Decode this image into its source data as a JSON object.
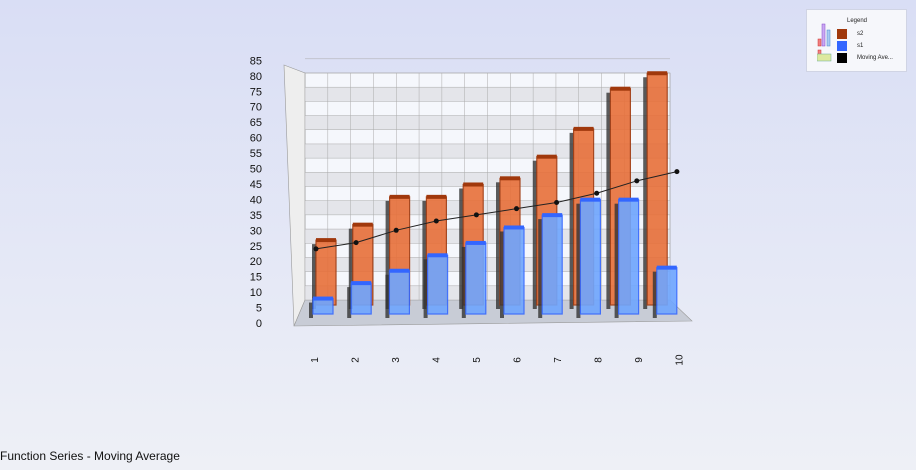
{
  "footer_title": "Function Series - Moving Average",
  "legend": {
    "title": "Legend",
    "items": [
      {
        "label": "s2",
        "color": "#a0380c"
      },
      {
        "label": "s1",
        "color": "#3366ff"
      },
      {
        "label": "Moving Ave...",
        "color": "#000000"
      }
    ]
  },
  "chart_data": {
    "type": "bar",
    "view": "3d",
    "categories": [
      "1",
      "2",
      "3",
      "4",
      "5",
      "6",
      "7",
      "8",
      "9",
      "10"
    ],
    "yticks": [
      0,
      5,
      10,
      15,
      20,
      25,
      30,
      35,
      40,
      45,
      50,
      55,
      60,
      65,
      70,
      75,
      80,
      85
    ],
    "ylim": [
      0,
      85
    ],
    "grid": true,
    "legend_position": "top-right",
    "series": [
      {
        "name": "s2",
        "type": "bar",
        "color": "#e8703a",
        "values": [
          21,
          26,
          35,
          35,
          39,
          41,
          48,
          57,
          70,
          75
        ]
      },
      {
        "name": "s1",
        "type": "bar",
        "color": "#6fa6ff",
        "values": [
          5,
          10,
          14,
          19,
          23,
          28,
          32,
          37,
          37,
          15
        ]
      },
      {
        "name": "Moving Ave...",
        "type": "line",
        "color": "#000000",
        "values": [
          24,
          26,
          30,
          33,
          35,
          37,
          39,
          42,
          46,
          49
        ]
      }
    ]
  }
}
